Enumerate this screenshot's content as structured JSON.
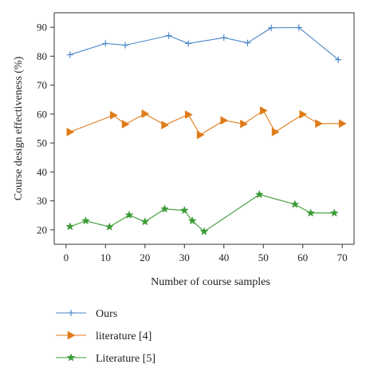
{
  "chart_data": {
    "type": "line",
    "title": "",
    "xlabel": "Number of course samples",
    "ylabel": "Course design effectiveness (%)",
    "xlim": [
      -3,
      73
    ],
    "ylim": [
      15,
      95
    ],
    "xticks": [
      0,
      10,
      20,
      30,
      40,
      50,
      60,
      70
    ],
    "yticks": [
      20,
      30,
      40,
      50,
      60,
      70,
      80,
      90
    ],
    "grid": false,
    "legend_position": "below-left",
    "series": [
      {
        "name": "Ours",
        "color": "#4a86c8",
        "marker": "plus",
        "x": [
          1,
          10,
          15,
          26,
          31,
          40,
          46,
          52,
          59,
          69
        ],
        "y": [
          80.5,
          84.4,
          83.8,
          87.1,
          84.4,
          86.4,
          84.6,
          89.8,
          89.9,
          78.8
        ]
      },
      {
        "name": "literature [4]",
        "color": "#e07b1a",
        "marker": "triangle-right",
        "x": [
          1,
          12,
          15,
          20,
          25,
          31,
          34,
          40,
          45,
          50,
          53,
          60,
          64,
          70
        ],
        "y": [
          53.8,
          59.6,
          56.5,
          60.1,
          56.2,
          59.8,
          52.8,
          57.8,
          56.6,
          61.2,
          53.8,
          59.9,
          56.7,
          56.7
        ]
      },
      {
        "name": "Literature [5]",
        "color": "#3a9b35",
        "marker": "star",
        "x": [
          1,
          5,
          11,
          16,
          20,
          25,
          30,
          32,
          35,
          49,
          58,
          62,
          68
        ],
        "y": [
          21.1,
          23.1,
          21.0,
          25.1,
          22.8,
          27.2,
          26.7,
          23.1,
          19.4,
          32.2,
          28.8,
          25.8,
          25.8
        ]
      }
    ]
  }
}
